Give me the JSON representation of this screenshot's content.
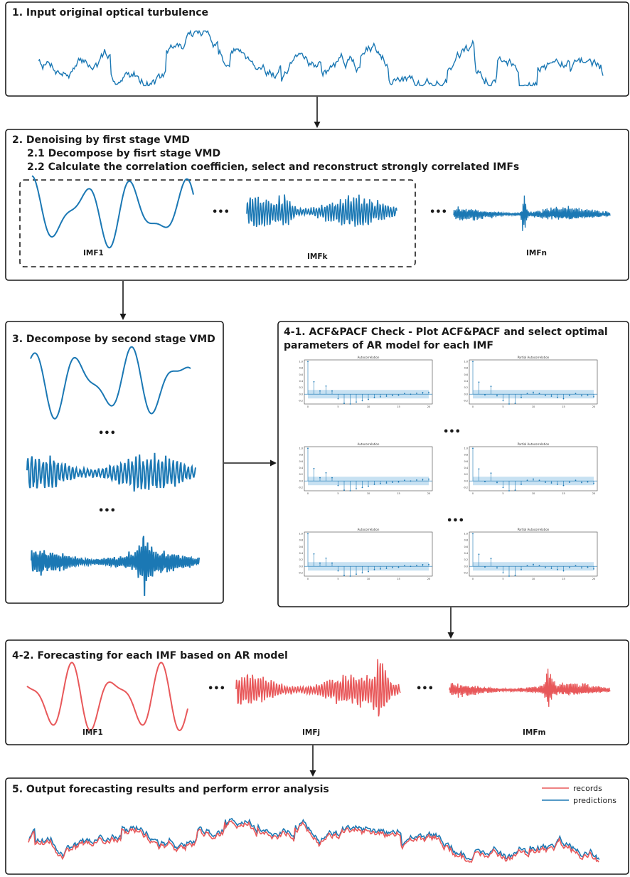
{
  "colors": {
    "blue": "#1b78b4",
    "red": "#e8585a",
    "band": "#b9d9ef",
    "stroke": "#1a1a1a"
  },
  "step1": {
    "title": "1. Input original optical turbulence"
  },
  "step2": {
    "title": "2. Denoising by first stage VMD",
    "sub1": "2.1 Decompose by fisrt stage VMD",
    "sub2": "2.2 Calculate the correlation coefficien,  select and reconstruct strongly correlated IMFs",
    "labels": [
      "IMF1",
      "IMFk",
      "IMFn"
    ],
    "ellipsis": "•••"
  },
  "step3": {
    "title": "3. Decompose by second stage VMD",
    "ellipsis": "•••"
  },
  "step41": {
    "title_line1": "4-1. ACF&PACF Check - Plot ACF&PACF and select optimal",
    "title_line2": "parameters of AR model for each IMF",
    "acf_title": "Autocorrelation",
    "pacf_title": "Partial Autocorrelation",
    "ellipsis": "•••",
    "acf_values": [
      1.0,
      0.38,
      0.1,
      0.25,
      0.1,
      -0.14,
      -0.28,
      -0.3,
      -0.24,
      -0.2,
      -0.16,
      -0.1,
      -0.08,
      -0.06,
      -0.04,
      -0.03,
      0.02,
      0.0,
      0.03,
      0.05,
      0.06
    ],
    "pacf_values": [
      1.0,
      0.37,
      -0.02,
      0.24,
      -0.05,
      -0.2,
      -0.3,
      -0.28,
      -0.1,
      0.02,
      0.06,
      0.02,
      -0.04,
      -0.06,
      -0.1,
      -0.14,
      -0.04,
      0.02,
      -0.05,
      -0.03,
      -0.08
    ],
    "y_ticks": [
      "1.0",
      "0.8",
      "0.6",
      "0.4",
      "0.2",
      "0.0",
      "-0.2"
    ],
    "x_ticks": [
      "0",
      "5",
      "10",
      "15",
      "20"
    ]
  },
  "step42": {
    "title": "4-2. Forecasting for each IMF based on AR model",
    "labels": [
      "IMF1",
      "IMFj",
      "IMFm"
    ],
    "ellipsis": "•••"
  },
  "step5": {
    "title": "5. Output forecasting results and perform error analysis",
    "legend": [
      {
        "name": "records",
        "color": "#e8585a"
      },
      {
        "name": "predictions",
        "color": "#1b78b4"
      }
    ]
  }
}
